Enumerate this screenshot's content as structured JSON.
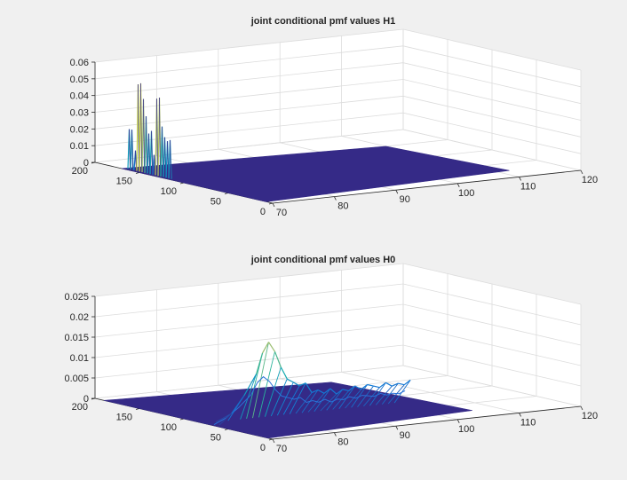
{
  "chart_data": [
    {
      "type": "mesh3d",
      "title": "joint conditional pmf values H1",
      "xlabel": "",
      "ylabel": "",
      "zlabel": "",
      "x_axis": {
        "range": [
          70,
          120
        ],
        "ticks": [
          70,
          80,
          90,
          100,
          110,
          120
        ]
      },
      "y_axis": {
        "range": [
          0,
          200
        ],
        "ticks": [
          0,
          50,
          100,
          150,
          200
        ]
      },
      "z_axis": {
        "range": [
          0,
          0.06
        ],
        "ticks": [
          0,
          0.01,
          0.02,
          0.03,
          0.04,
          0.05,
          0.06
        ]
      },
      "grid": true,
      "colormap": "parula",
      "surface_color": "#352a87",
      "peaks": [
        {
          "y": 165,
          "z": 0.024
        },
        {
          "y": 162,
          "z": 0.024
        },
        {
          "y": 158,
          "z": 0.012
        },
        {
          "y": 155,
          "z": 0.052
        },
        {
          "y": 152,
          "z": 0.053
        },
        {
          "y": 149,
          "z": 0.044
        },
        {
          "y": 146,
          "z": 0.034
        },
        {
          "y": 143,
          "z": 0.024
        },
        {
          "y": 140,
          "z": 0.026
        },
        {
          "y": 137,
          "z": 0.012
        },
        {
          "y": 134,
          "z": 0.046
        },
        {
          "y": 131,
          "z": 0.047
        },
        {
          "y": 128,
          "z": 0.03
        },
        {
          "y": 125,
          "z": 0.024
        },
        {
          "y": 122,
          "z": 0.022
        },
        {
          "y": 119,
          "z": 0.023
        }
      ]
    },
    {
      "type": "mesh3d",
      "title": "joint conditional pmf values H0",
      "xlabel": "",
      "ylabel": "",
      "zlabel": "",
      "x_axis": {
        "range": [
          70,
          120
        ],
        "ticks": [
          70,
          80,
          90,
          100,
          110,
          120
        ]
      },
      "y_axis": {
        "range": [
          0,
          200
        ],
        "ticks": [
          0,
          50,
          100,
          150,
          200
        ]
      },
      "z_axis": {
        "range": [
          0,
          0.025
        ],
        "ticks": [
          0,
          0.005,
          0.01,
          0.015,
          0.02,
          0.025
        ]
      },
      "grid": true,
      "colormap": "parula",
      "surface_color": "#352a87",
      "ridge_y": 60,
      "ridge_profile": [
        {
          "x": 70,
          "z": 0.0005
        },
        {
          "x": 72,
          "z": 0.003
        },
        {
          "x": 74,
          "z": 0.007
        },
        {
          "x": 76,
          "z": 0.012
        },
        {
          "x": 77,
          "z": 0.017
        },
        {
          "x": 78,
          "z": 0.0195
        },
        {
          "x": 79,
          "z": 0.017
        },
        {
          "x": 80,
          "z": 0.013
        },
        {
          "x": 81,
          "z": 0.01
        },
        {
          "x": 82,
          "z": 0.009
        },
        {
          "x": 83,
          "z": 0.008
        },
        {
          "x": 84,
          "z": 0.0085
        },
        {
          "x": 85,
          "z": 0.006
        },
        {
          "x": 86,
          "z": 0.0065
        },
        {
          "x": 87,
          "z": 0.0055
        },
        {
          "x": 88,
          "z": 0.0065
        },
        {
          "x": 89,
          "z": 0.005
        },
        {
          "x": 90,
          "z": 0.006
        },
        {
          "x": 91,
          "z": 0.0055
        },
        {
          "x": 92,
          "z": 0.0065
        },
        {
          "x": 93,
          "z": 0.0055
        },
        {
          "x": 94,
          "z": 0.0065
        },
        {
          "x": 95,
          "z": 0.006
        },
        {
          "x": 96,
          "z": 0.0055
        },
        {
          "x": 97,
          "z": 0.0065
        },
        {
          "x": 98,
          "z": 0.0055
        },
        {
          "x": 99,
          "z": 0.006
        },
        {
          "x": 100,
          "z": 0.0055
        },
        {
          "x": 101,
          "z": 0.0065
        }
      ]
    }
  ]
}
